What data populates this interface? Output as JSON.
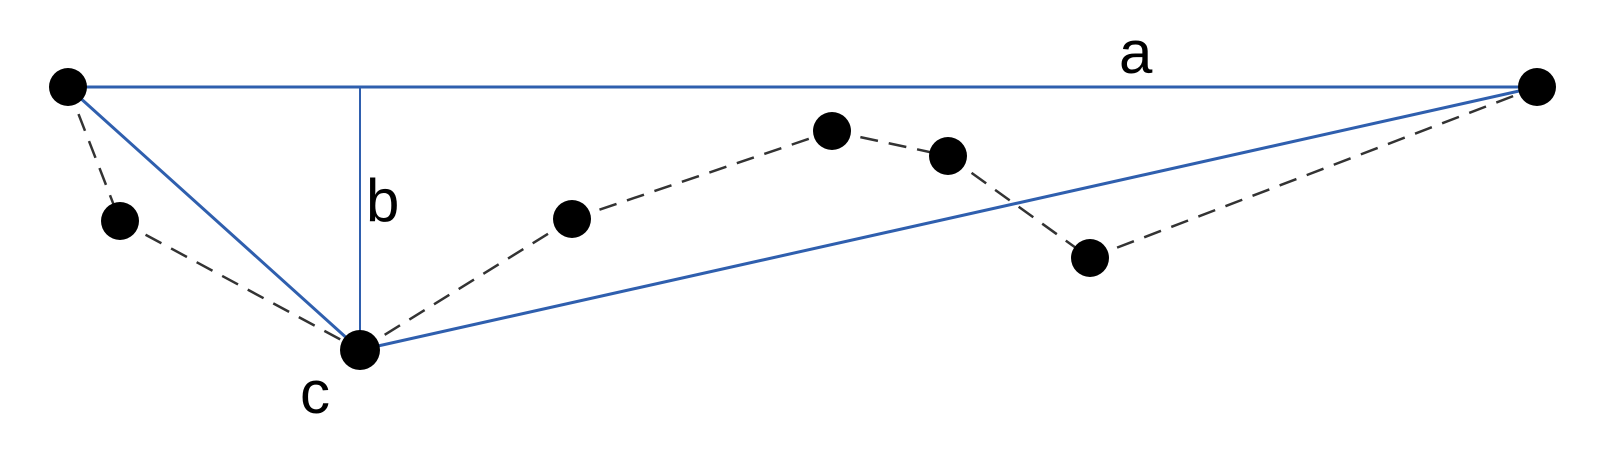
{
  "labels": {
    "a": "a",
    "b": "b",
    "c": "c"
  },
  "colors": {
    "line": "#2f5fae",
    "dash": "#333333",
    "point": "#000000",
    "text": "#000000"
  }
}
